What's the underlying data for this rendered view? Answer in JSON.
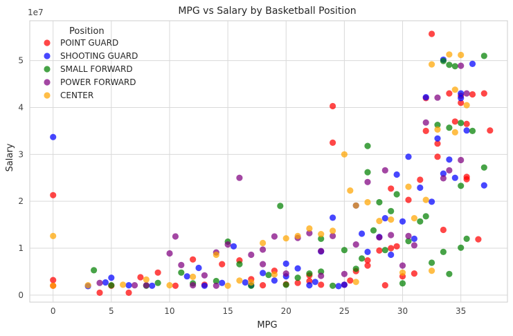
{
  "chart_data": {
    "type": "scatter",
    "title": "MPG vs Salary by Basketball Position",
    "xlabel": "MPG",
    "ylabel": "Salary",
    "y_scale_label": "1e7",
    "xlim": [
      -2,
      39
    ],
    "ylim": [
      -1500000,
      58500000
    ],
    "x_ticks": [
      0,
      5,
      10,
      15,
      20,
      25,
      30,
      35
    ],
    "y_ticks": [
      0,
      10000000,
      20000000,
      30000000,
      40000000,
      50000000
    ],
    "y_tick_labels": [
      "0",
      "1",
      "2",
      "3",
      "4",
      "5"
    ],
    "grid": true,
    "legend_title": "Position",
    "legend_location": "top-left",
    "series": [
      {
        "name": "POINT GUARD",
        "color": "#ff0000",
        "points": [
          [
            0,
            21300000
          ],
          [
            0,
            3200000
          ],
          [
            0,
            2000000
          ],
          [
            4,
            500000
          ],
          [
            5,
            2000000
          ],
          [
            6.5,
            500000
          ],
          [
            7.5,
            3800000
          ],
          [
            9,
            4800000
          ],
          [
            10.5,
            2000000
          ],
          [
            12,
            7600000
          ],
          [
            13,
            2200000
          ],
          [
            14.5,
            6600000
          ],
          [
            16,
            7400000
          ],
          [
            17,
            3400000
          ],
          [
            18,
            2100000
          ],
          [
            19,
            5200000
          ],
          [
            20,
            2300000
          ],
          [
            21,
            2600000
          ],
          [
            22,
            3000000
          ],
          [
            23,
            2200000
          ],
          [
            24,
            40300000
          ],
          [
            24,
            32500000
          ],
          [
            25,
            2200000
          ],
          [
            26,
            5100000
          ],
          [
            27,
            7400000
          ],
          [
            28,
            9500000
          ],
          [
            28.5,
            2100000
          ],
          [
            29,
            22700000
          ],
          [
            29.5,
            10400000
          ],
          [
            30,
            4000000
          ],
          [
            30.5,
            20300000
          ],
          [
            31,
            4600000
          ],
          [
            31.5,
            24600000
          ],
          [
            32,
            42000000
          ],
          [
            32,
            35000000
          ],
          [
            32.5,
            55700000
          ],
          [
            33,
            29500000
          ],
          [
            33,
            32300000
          ],
          [
            33.5,
            13900000
          ],
          [
            34,
            43000000
          ],
          [
            34.5,
            37000000
          ],
          [
            35,
            41000000
          ],
          [
            35,
            42500000
          ],
          [
            35.5,
            36500000
          ],
          [
            35.5,
            24700000
          ],
          [
            35.5,
            25200000
          ],
          [
            36,
            42800000
          ],
          [
            36.5,
            11900000
          ],
          [
            37,
            43000000
          ],
          [
            37.5,
            35100000
          ],
          [
            29,
            10000000
          ],
          [
            27,
            6300000
          ],
          [
            25.5,
            3100000
          ],
          [
            22,
            4200000
          ]
        ]
      },
      {
        "name": "SHOOTING GUARD",
        "color": "#0000ff",
        "points": [
          [
            0,
            33700000
          ],
          [
            3,
            1900000
          ],
          [
            4.5,
            2700000
          ],
          [
            5,
            3700000
          ],
          [
            6.5,
            2100000
          ],
          [
            8.5,
            2000000
          ],
          [
            11.5,
            4000000
          ],
          [
            12.5,
            5800000
          ],
          [
            13,
            2000000
          ],
          [
            14.5,
            2600000
          ],
          [
            15.5,
            10400000
          ],
          [
            16.5,
            2700000
          ],
          [
            18,
            4700000
          ],
          [
            19,
            3100000
          ],
          [
            20,
            6700000
          ],
          [
            21,
            5700000
          ],
          [
            22,
            2100000
          ],
          [
            23,
            9300000
          ],
          [
            24,
            16500000
          ],
          [
            24.5,
            1900000
          ],
          [
            25,
            2200000
          ],
          [
            26,
            19100000
          ],
          [
            26.5,
            13100000
          ],
          [
            27,
            9200000
          ],
          [
            28,
            12400000
          ],
          [
            28.5,
            16400000
          ],
          [
            29,
            8600000
          ],
          [
            29.5,
            25700000
          ],
          [
            30,
            15700000
          ],
          [
            30.5,
            29500000
          ],
          [
            31,
            12000000
          ],
          [
            31.5,
            22900000
          ],
          [
            32,
            42200000
          ],
          [
            32.5,
            19900000
          ],
          [
            33,
            33400000
          ],
          [
            33.5,
            50200000
          ],
          [
            33.5,
            25900000
          ],
          [
            34,
            28900000
          ],
          [
            34.5,
            25000000
          ],
          [
            35,
            43000000
          ],
          [
            35,
            42000000
          ],
          [
            35.5,
            35100000
          ],
          [
            36,
            49300000
          ],
          [
            37,
            23400000
          ],
          [
            17,
            2100000
          ],
          [
            20,
            4000000
          ],
          [
            22.5,
            2800000
          ]
        ]
      },
      {
        "name": "SMALL FORWARD",
        "color": "#008000",
        "points": [
          [
            3.5,
            5300000
          ],
          [
            5,
            2100000
          ],
          [
            8,
            2000000
          ],
          [
            9,
            2600000
          ],
          [
            11,
            4800000
          ],
          [
            12,
            2500000
          ],
          [
            14,
            3000000
          ],
          [
            15,
            11400000
          ],
          [
            16,
            6600000
          ],
          [
            17,
            2000000
          ],
          [
            18.5,
            4300000
          ],
          [
            19.5,
            19000000
          ],
          [
            20,
            2200000
          ],
          [
            21,
            3700000
          ],
          [
            22,
            4600000
          ],
          [
            23,
            5000000
          ],
          [
            24,
            2000000
          ],
          [
            25,
            9600000
          ],
          [
            26,
            5600000
          ],
          [
            26.5,
            7800000
          ],
          [
            27,
            31800000
          ],
          [
            27,
            26200000
          ],
          [
            27.5,
            13800000
          ],
          [
            28,
            19800000
          ],
          [
            28.5,
            9600000
          ],
          [
            29,
            17900000
          ],
          [
            29.5,
            21500000
          ],
          [
            30,
            2500000
          ],
          [
            30.5,
            11500000
          ],
          [
            31.5,
            15700000
          ],
          [
            32,
            16800000
          ],
          [
            32.5,
            6900000
          ],
          [
            33,
            36300000
          ],
          [
            33.5,
            49900000
          ],
          [
            34,
            49100000
          ],
          [
            34.5,
            48800000
          ],
          [
            34,
            35700000
          ],
          [
            35,
            36700000
          ],
          [
            35,
            23300000
          ],
          [
            35.5,
            12000000
          ],
          [
            35,
            10100000
          ],
          [
            36,
            35000000
          ],
          [
            37,
            27200000
          ],
          [
            37,
            51000000
          ],
          [
            33.5,
            9200000
          ],
          [
            34,
            4500000
          ],
          [
            23,
            12000000
          ]
        ]
      },
      {
        "name": "POWER FORWARD",
        "color": "#800080",
        "points": [
          [
            4,
            2600000
          ],
          [
            7,
            2100000
          ],
          [
            8,
            2100000
          ],
          [
            10,
            8900000
          ],
          [
            10.5,
            12500000
          ],
          [
            11,
            6400000
          ],
          [
            12,
            2100000
          ],
          [
            13,
            4200000
          ],
          [
            14,
            9100000
          ],
          [
            15,
            10800000
          ],
          [
            16,
            25000000
          ],
          [
            17,
            8600000
          ],
          [
            18,
            9700000
          ],
          [
            19,
            12500000
          ],
          [
            20,
            4600000
          ],
          [
            21,
            12200000
          ],
          [
            22,
            13200000
          ],
          [
            23,
            9400000
          ],
          [
            24,
            12600000
          ],
          [
            25,
            4500000
          ],
          [
            26,
            10800000
          ],
          [
            27,
            24100000
          ],
          [
            28,
            12300000
          ],
          [
            28.5,
            26600000
          ],
          [
            29,
            12800000
          ],
          [
            30,
            6300000
          ],
          [
            30.5,
            12600000
          ],
          [
            31,
            10600000
          ],
          [
            32,
            36800000
          ],
          [
            33,
            42100000
          ],
          [
            33.5,
            24900000
          ],
          [
            34,
            26600000
          ],
          [
            35,
            48900000
          ],
          [
            35.5,
            43000000
          ],
          [
            35,
            28800000
          ],
          [
            18,
            6600000
          ],
          [
            14,
            2000000
          ],
          [
            23,
            4100000
          ]
        ]
      },
      {
        "name": "CENTER",
        "color": "#ffa500",
        "points": [
          [
            0,
            12600000
          ],
          [
            0,
            2000000
          ],
          [
            3,
            2100000
          ],
          [
            6,
            2200000
          ],
          [
            8,
            3300000
          ],
          [
            10,
            2100000
          ],
          [
            12,
            3900000
          ],
          [
            14,
            8600000
          ],
          [
            15,
            2000000
          ],
          [
            16,
            3100000
          ],
          [
            17,
            2700000
          ],
          [
            18,
            11100000
          ],
          [
            19,
            4400000
          ],
          [
            20,
            12100000
          ],
          [
            21,
            12600000
          ],
          [
            22,
            14200000
          ],
          [
            23,
            13000000
          ],
          [
            24,
            13700000
          ],
          [
            25,
            30000000
          ],
          [
            25.5,
            22300000
          ],
          [
            26,
            19100000
          ],
          [
            27,
            19800000
          ],
          [
            28,
            15800000
          ],
          [
            29,
            16100000
          ],
          [
            30,
            4800000
          ],
          [
            30.5,
            23100000
          ],
          [
            31,
            16400000
          ],
          [
            32,
            20300000
          ],
          [
            32.5,
            49200000
          ],
          [
            33,
            35300000
          ],
          [
            34,
            51300000
          ],
          [
            34.5,
            43800000
          ],
          [
            35,
            51200000
          ],
          [
            35.5,
            40500000
          ],
          [
            34.5,
            34700000
          ],
          [
            32.5,
            5200000
          ],
          [
            26,
            2800000
          ]
        ]
      }
    ]
  }
}
